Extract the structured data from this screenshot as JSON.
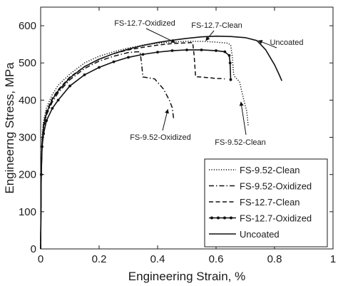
{
  "chart_data": {
    "type": "line",
    "xlabel": "Engineering Strain, %",
    "ylabel": "Engineerng Stress, MPa",
    "xlim": [
      0,
      1
    ],
    "ylim": [
      0,
      650
    ],
    "xticks": [
      0,
      0.2,
      0.4,
      0.6,
      0.8,
      1
    ],
    "xtick_labels": [
      "0",
      "0.2",
      "0.4",
      "0.6",
      "0.8",
      "1"
    ],
    "yticks": [
      0,
      100,
      200,
      300,
      400,
      500,
      600
    ],
    "ytick_labels": [
      "0",
      "100",
      "200",
      "300",
      "400",
      "500",
      "600"
    ],
    "grid": false,
    "legend": "bottom-right",
    "series": [
      {
        "name": "FS-9.52-Clean",
        "style": "dotted",
        "markers": false,
        "points": [
          [
            0,
            0
          ],
          [
            0.002,
            200
          ],
          [
            0.005,
            300
          ],
          [
            0.01,
            345
          ],
          [
            0.02,
            380
          ],
          [
            0.04,
            415
          ],
          [
            0.06,
            440
          ],
          [
            0.1,
            470
          ],
          [
            0.15,
            500
          ],
          [
            0.2,
            518
          ],
          [
            0.25,
            530
          ],
          [
            0.3,
            540
          ],
          [
            0.35,
            548
          ],
          [
            0.4,
            553
          ],
          [
            0.45,
            556
          ],
          [
            0.5,
            558
          ],
          [
            0.55,
            558
          ],
          [
            0.6,
            556
          ],
          [
            0.64,
            553
          ],
          [
            0.65,
            548
          ],
          [
            0.655,
            520
          ],
          [
            0.66,
            470
          ],
          [
            0.665,
            462
          ],
          [
            0.68,
            450
          ],
          [
            0.695,
            400
          ],
          [
            0.705,
            370
          ],
          [
            0.71,
            330
          ]
        ]
      },
      {
        "name": "FS-9.52-Oxidized",
        "style": "dash-dot",
        "markers": false,
        "points": [
          [
            0,
            0
          ],
          [
            0.002,
            200
          ],
          [
            0.005,
            280
          ],
          [
            0.01,
            325
          ],
          [
            0.02,
            360
          ],
          [
            0.04,
            395
          ],
          [
            0.06,
            420
          ],
          [
            0.1,
            455
          ],
          [
            0.15,
            485
          ],
          [
            0.2,
            505
          ],
          [
            0.25,
            518
          ],
          [
            0.3,
            528
          ],
          [
            0.33,
            530
          ],
          [
            0.34,
            530
          ],
          [
            0.345,
            500
          ],
          [
            0.35,
            462
          ],
          [
            0.37,
            460
          ],
          [
            0.39,
            457
          ],
          [
            0.42,
            430
          ],
          [
            0.44,
            400
          ],
          [
            0.45,
            380
          ],
          [
            0.455,
            350
          ]
        ]
      },
      {
        "name": "FS-12.7-Clean",
        "style": "dashed",
        "markers": false,
        "points": [
          [
            0,
            0
          ],
          [
            0.002,
            200
          ],
          [
            0.005,
            290
          ],
          [
            0.01,
            335
          ],
          [
            0.02,
            370
          ],
          [
            0.04,
            405
          ],
          [
            0.06,
            428
          ],
          [
            0.1,
            462
          ],
          [
            0.15,
            490
          ],
          [
            0.2,
            510
          ],
          [
            0.25,
            525
          ],
          [
            0.3,
            535
          ],
          [
            0.35,
            542
          ],
          [
            0.4,
            548
          ],
          [
            0.45,
            552
          ],
          [
            0.5,
            554
          ],
          [
            0.52,
            555
          ],
          [
            0.525,
            520
          ],
          [
            0.53,
            463
          ],
          [
            0.55,
            462
          ],
          [
            0.58,
            460
          ],
          [
            0.6,
            458
          ],
          [
            0.62,
            458
          ],
          [
            0.63,
            457
          ]
        ]
      },
      {
        "name": "FS-12.7-Oxidized",
        "style": "solid",
        "markers": true,
        "points": [
          [
            0,
            0
          ],
          [
            0.002,
            200
          ],
          [
            0.005,
            275
          ],
          [
            0.01,
            310
          ],
          [
            0.02,
            345
          ],
          [
            0.04,
            378
          ],
          [
            0.06,
            400
          ],
          [
            0.1,
            438
          ],
          [
            0.15,
            468
          ],
          [
            0.2,
            488
          ],
          [
            0.25,
            503
          ],
          [
            0.3,
            515
          ],
          [
            0.35,
            523
          ],
          [
            0.4,
            529
          ],
          [
            0.45,
            533
          ],
          [
            0.5,
            535
          ],
          [
            0.55,
            535
          ],
          [
            0.6,
            533
          ],
          [
            0.63,
            530
          ],
          [
            0.645,
            520
          ],
          [
            0.648,
            500
          ],
          [
            0.65,
            455
          ]
        ]
      },
      {
        "name": "Uncoated",
        "style": "solid",
        "markers": false,
        "points": [
          [
            0,
            0
          ],
          [
            0.002,
            200
          ],
          [
            0.005,
            285
          ],
          [
            0.01,
            330
          ],
          [
            0.02,
            365
          ],
          [
            0.04,
            402
          ],
          [
            0.06,
            425
          ],
          [
            0.1,
            460
          ],
          [
            0.15,
            490
          ],
          [
            0.2,
            510
          ],
          [
            0.25,
            525
          ],
          [
            0.3,
            537
          ],
          [
            0.35,
            547
          ],
          [
            0.4,
            555
          ],
          [
            0.45,
            561
          ],
          [
            0.5,
            566
          ],
          [
            0.55,
            570
          ],
          [
            0.6,
            572
          ],
          [
            0.65,
            571
          ],
          [
            0.7,
            568
          ],
          [
            0.74,
            560
          ],
          [
            0.77,
            535
          ],
          [
            0.8,
            495
          ],
          [
            0.815,
            470
          ],
          [
            0.825,
            452
          ]
        ]
      }
    ],
    "annotations": [
      {
        "text": "FS-12.7-Oxidized",
        "arrow_to": [
          0.46,
          555
        ]
      },
      {
        "text": "FS-12.7-Clean",
        "arrow_to": [
          0.565,
          560
        ]
      },
      {
        "text": "Uncoated",
        "arrow_to": [
          0.745,
          560
        ]
      },
      {
        "text": "FS-9.52-Oxidized",
        "arrow_to": [
          0.435,
          375
        ]
      },
      {
        "text": "FS-9.52-Clean",
        "arrow_to": [
          0.685,
          395
        ]
      }
    ]
  }
}
